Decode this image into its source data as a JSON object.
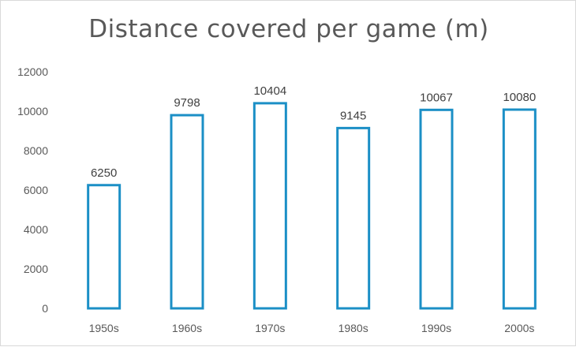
{
  "chart_data": {
    "type": "bar",
    "title": "Distance covered per game (m)",
    "xlabel": "",
    "ylabel": "",
    "categories": [
      "1950s",
      "1960s",
      "1970s",
      "1980s",
      "1990s",
      "2000s"
    ],
    "values": [
      6250,
      9798,
      10404,
      9145,
      10067,
      10080
    ],
    "ylim": [
      0,
      12000
    ],
    "yticks": [
      0,
      2000,
      4000,
      6000,
      8000,
      10000,
      12000
    ],
    "grid": false,
    "legend": "none",
    "bar_style": "outline",
    "bar_color": "#1b8fc6"
  }
}
